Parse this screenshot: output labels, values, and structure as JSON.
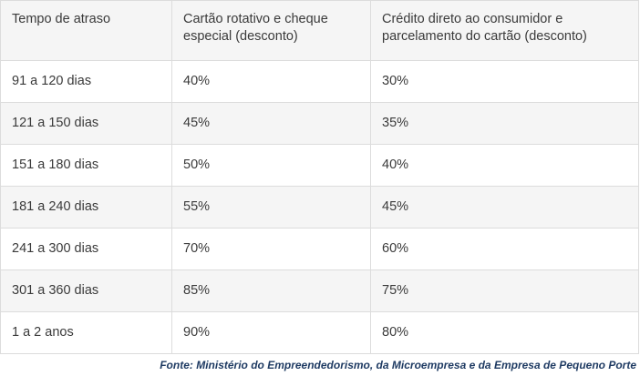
{
  "table": {
    "headers": [
      "Tempo de atraso",
      "Cartão rotativo e cheque especial (desconto)",
      "Crédito direto ao consumidor e parcelamento do cartão (desconto)"
    ],
    "rows": [
      [
        "91 a 120 dias",
        "40%",
        "30%"
      ],
      [
        "121 a 150 dias",
        "45%",
        "35%"
      ],
      [
        "151 a 180 dias",
        "50%",
        "40%"
      ],
      [
        "181 a 240 dias",
        "55%",
        "45%"
      ],
      [
        "241 a 300 dias",
        "70%",
        "60%"
      ],
      [
        "301 a 360 dias",
        "85%",
        "75%"
      ],
      [
        "1 a 2 anos",
        "90%",
        "80%"
      ]
    ]
  },
  "source": "Fonte: Ministério do Empreendedorismo, da Microempresa e da Empresa de Pequeno Porte",
  "colors": {
    "header_bg": "#f5f5f5",
    "stripe_bg": "#f5f5f5",
    "border": "#dcdcdc",
    "text": "#3a3a3a",
    "source_text": "#1f3b63"
  }
}
